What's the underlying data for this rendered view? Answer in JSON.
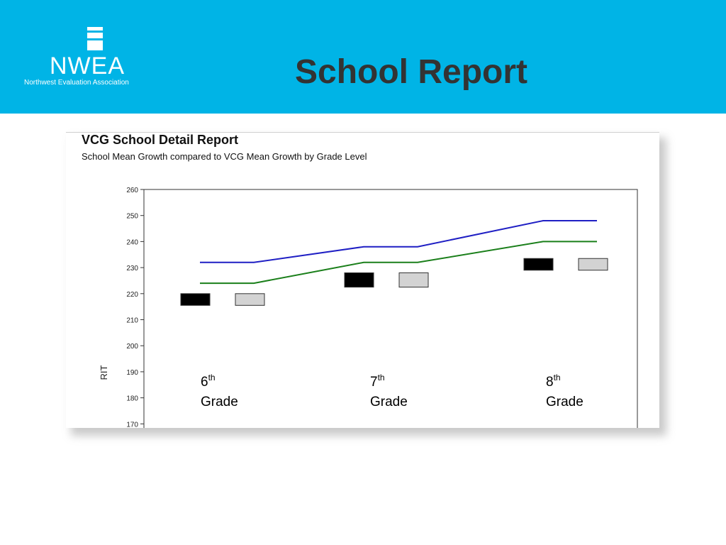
{
  "header": {
    "title": "School Report",
    "logo": {
      "wordmark": "NWEA",
      "tagline": "Northwest Evaluation Association"
    },
    "banner_color": "#00b4e6"
  },
  "report": {
    "title": "VCG School Detail Report",
    "subtitle": "School Mean Growth compared to VCG Mean Growth by Grade Level"
  },
  "chart_data": {
    "type": "line",
    "ylabel": "RIT",
    "ylim": [
      170,
      260
    ],
    "yticks": [
      170,
      180,
      190,
      200,
      210,
      220,
      230,
      240,
      250,
      260
    ],
    "categories": [
      {
        "num": "6",
        "sup": "th",
        "label": "Grade"
      },
      {
        "num": "7",
        "sup": "th",
        "label": "Grade"
      },
      {
        "num": "8",
        "sup": "th",
        "label": "Grade"
      }
    ],
    "series": [
      {
        "color": "#1f1fc4",
        "values": [
          232,
          238,
          248
        ]
      },
      {
        "color": "#1a7f1a",
        "values": [
          224,
          232,
          240
        ]
      }
    ],
    "boxes": [
      {
        "color": "#000000",
        "ranges": [
          [
            215.5,
            220
          ],
          [
            222.5,
            228
          ],
          [
            229,
            233.5
          ]
        ]
      },
      {
        "color": "#d3d3d3",
        "ranges": [
          [
            215.5,
            220
          ],
          [
            222.5,
            228
          ],
          [
            229,
            233.5
          ]
        ]
      }
    ],
    "grid": false
  }
}
